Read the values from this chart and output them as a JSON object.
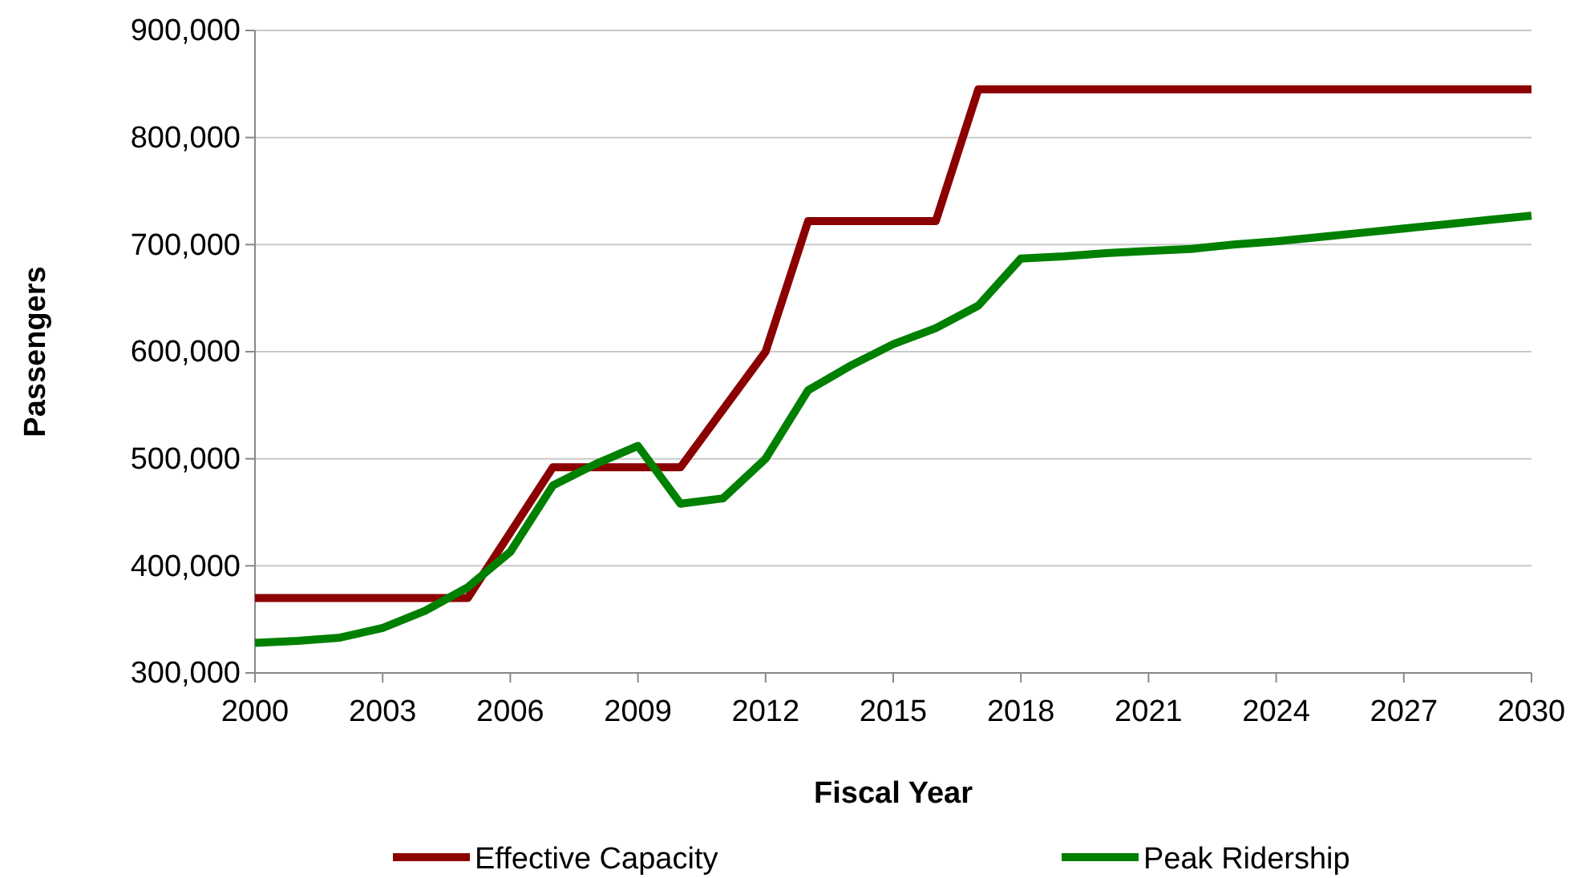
{
  "chart_data": {
    "type": "line",
    "xlabel": "Fiscal Year",
    "ylabel": "Passengers",
    "xlim": [
      2000,
      2030
    ],
    "xticks": [
      2000,
      2003,
      2006,
      2009,
      2012,
      2015,
      2018,
      2021,
      2024,
      2027,
      2030
    ],
    "ylim": [
      300000,
      900000
    ],
    "yticks": [
      {
        "value": 300000,
        "label": "300,000"
      },
      {
        "value": 400000,
        "label": "400,000"
      },
      {
        "value": 500000,
        "label": "500,000"
      },
      {
        "value": 600000,
        "label": "600,000"
      },
      {
        "value": 700000,
        "label": "700,000"
      },
      {
        "value": 800000,
        "label": "800,000"
      },
      {
        "value": 900000,
        "label": "900,000"
      }
    ],
    "grid": "y",
    "legend": "bottom",
    "line_style": "solid",
    "series": [
      {
        "name": "Effective Capacity",
        "color": "#8b0000",
        "x": [
          2000,
          2005,
          2007,
          2010,
          2012,
          2013,
          2016,
          2017,
          2030
        ],
        "values": [
          370000,
          370000,
          492000,
          492000,
          600000,
          722000,
          722000,
          845000,
          845000
        ]
      },
      {
        "name": "Peak Ridership",
        "color": "#008000",
        "x": [
          2000,
          2001,
          2002,
          2003,
          2004,
          2005,
          2006,
          2007,
          2008,
          2009,
          2010,
          2011,
          2012,
          2013,
          2014,
          2015,
          2016,
          2017,
          2018,
          2019,
          2020,
          2021,
          2022,
          2023,
          2024,
          2025,
          2026,
          2027,
          2028,
          2029,
          2030
        ],
        "values": [
          328000,
          330000,
          333000,
          342000,
          358000,
          380000,
          413000,
          475000,
          495000,
          512000,
          458000,
          463000,
          500000,
          564000,
          587000,
          607000,
          622000,
          643000,
          687000,
          689000,
          692000,
          694000,
          696000,
          700000,
          703000,
          707000,
          711000,
          715000,
          719000,
          723000,
          727000
        ]
      }
    ]
  }
}
